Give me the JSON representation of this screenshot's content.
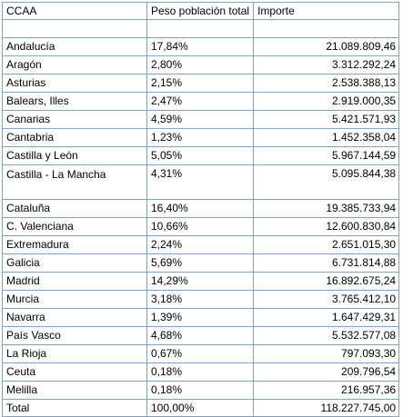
{
  "headers": [
    "CCAA",
    "Peso población total",
    "Importe"
  ],
  "rows": [
    {
      "ccaa": "Andalucía",
      "peso": "17,84%",
      "importe": "21.089.809,46"
    },
    {
      "ccaa": "Aragón",
      "peso": "2,80%",
      "importe": "3.312.292,24"
    },
    {
      "ccaa": "Asturias",
      "peso": "2,15%",
      "importe": "2.538.388,13"
    },
    {
      "ccaa": "Balears, Illes",
      "peso": "2,47%",
      "importe": "2.919.000,35"
    },
    {
      "ccaa": "Canarias",
      "peso": "4,59%",
      "importe": "5.421.571,93"
    },
    {
      "ccaa": "Cantabria",
      "peso": "1,23%",
      "importe": "1.452.358,04"
    },
    {
      "ccaa": "Castilla y León",
      "peso": "5,05%",
      "importe": "5.967.144,59"
    },
    {
      "ccaa": "Castilla - La Mancha",
      "peso": "4,31%",
      "importe": "5.095.844,38"
    },
    {
      "ccaa": "Cataluña",
      "peso": "16,40%",
      "importe": "19.385.733,94"
    },
    {
      "ccaa": "C. Valenciana",
      "peso": "10,66%",
      "importe": "12.600.830,84"
    },
    {
      "ccaa": "Extremadura",
      "peso": "2,24%",
      "importe": "2.651.015,30"
    },
    {
      "ccaa": "Galicia",
      "peso": "5,69%",
      "importe": "6.731.814,88"
    },
    {
      "ccaa": "Madrid",
      "peso": "14,29%",
      "importe": "16.892.675,24"
    },
    {
      "ccaa": "Murcia",
      "peso": "3,18%",
      "importe": "3.765.412,10"
    },
    {
      "ccaa": "Navarra",
      "peso": "1,39%",
      "importe": "1.647.429,31"
    },
    {
      "ccaa": "País Vasco",
      "peso": "4,68%",
      "importe": "5.532.577,08"
    },
    {
      "ccaa": "La Rioja",
      "peso": "0,67%",
      "importe": "797.093,30"
    },
    {
      "ccaa": "Ceuta",
      "peso": "0,18%",
      "importe": "209.796,54"
    },
    {
      "ccaa": "Melilla",
      "peso": "0,18%",
      "importe": "216.957,36"
    }
  ],
  "total": {
    "ccaa": "Total",
    "peso": "100,00%",
    "importe": "118.227.745,00"
  },
  "colors": {
    "border": "#7fa3c6",
    "text": "#000000",
    "background": "#ffffff"
  }
}
